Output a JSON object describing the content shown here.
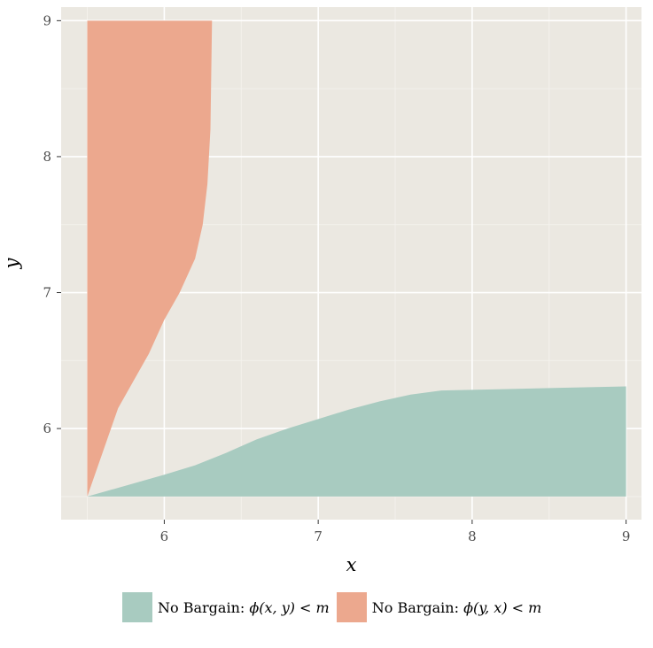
{
  "chart_data": {
    "type": "area",
    "xlabel": "x",
    "ylabel": "y",
    "xlim": [
      5.33,
      9.1
    ],
    "ylim": [
      5.33,
      9.1
    ],
    "x_ticks": [
      6,
      7,
      8,
      9
    ],
    "y_ticks": [
      6,
      7,
      8,
      9
    ],
    "grid": true,
    "legend_position": "bottom",
    "colors": {
      "panel": "#EBE8E1",
      "grid_major": "#FFFFFF",
      "grid_minor": "#F4F2EE"
    },
    "series": [
      {
        "name": "No Bargain: ϕ(x, y) < m",
        "legend_prefix": "No Bargain: ",
        "legend_math": "ϕ(x, y) < m",
        "color": "#A8CBC0",
        "points": [
          [
            5.5,
            5.5
          ],
          [
            6.0,
            5.66
          ],
          [
            6.2,
            5.73
          ],
          [
            6.4,
            5.82
          ],
          [
            6.6,
            5.92
          ],
          [
            6.8,
            6.0
          ],
          [
            7.0,
            6.07
          ],
          [
            7.2,
            6.14
          ],
          [
            7.4,
            6.2
          ],
          [
            7.6,
            6.25
          ],
          [
            7.8,
            6.28
          ],
          [
            8.2,
            6.29
          ],
          [
            8.6,
            6.3
          ],
          [
            9.0,
            6.31
          ],
          [
            9.0,
            5.5
          ]
        ]
      },
      {
        "name": "No Bargain: ϕ(y, x) < m",
        "legend_prefix": "No Bargain: ",
        "legend_math": "ϕ(y, x) < m",
        "color": "#ECA88E",
        "points": [
          [
            5.5,
            5.5
          ],
          [
            5.7,
            6.15
          ],
          [
            5.8,
            6.35
          ],
          [
            5.9,
            6.55
          ],
          [
            6.0,
            6.8
          ],
          [
            6.1,
            7.0
          ],
          [
            6.2,
            7.25
          ],
          [
            6.25,
            7.5
          ],
          [
            6.28,
            7.8
          ],
          [
            6.3,
            8.2
          ],
          [
            6.31,
            9.0
          ],
          [
            5.5,
            9.0
          ]
        ]
      }
    ]
  }
}
